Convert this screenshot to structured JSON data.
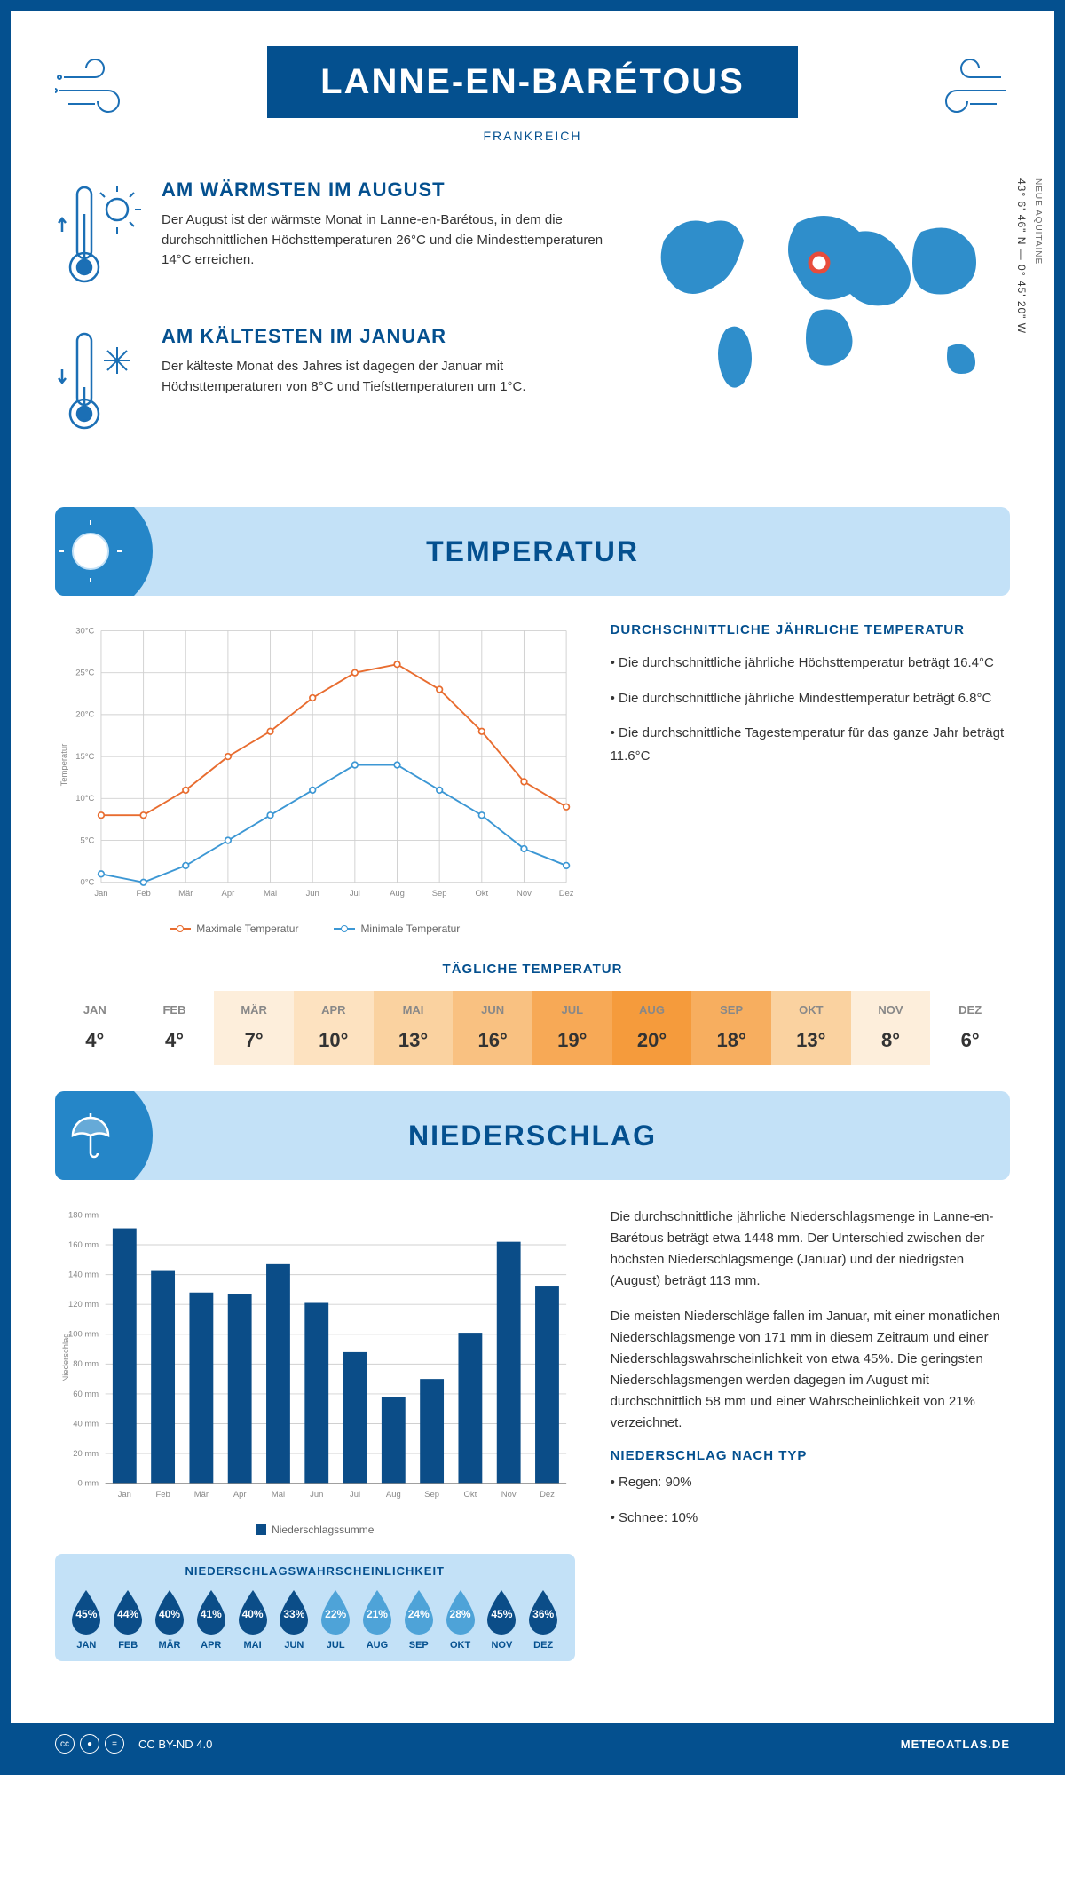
{
  "header": {
    "title": "LANNE-EN-BARÉTOUS",
    "country": "FRANKREICH"
  },
  "coords": {
    "line": "43° 6' 46\" N — 0° 45' 20\" W",
    "region": "NEUE AQUITAINE"
  },
  "warmest": {
    "title": "AM WÄRMSTEN IM AUGUST",
    "body": "Der August ist der wärmste Monat in Lanne-en-Barétous, in dem die durchschnittlichen Höchsttemperaturen 26°C und die Mindesttemperaturen 14°C erreichen."
  },
  "coldest": {
    "title": "AM KÄLTESTEN IM JANUAR",
    "body": "Der kälteste Monat des Jahres ist dagegen der Januar mit Höchsttemperaturen von 8°C und Tiefsttemperaturen um 1°C."
  },
  "sections": {
    "temp": "TEMPERATUR",
    "precip": "NIEDERSCHLAG"
  },
  "months": [
    "Jan",
    "Feb",
    "Mär",
    "Apr",
    "Mai",
    "Jun",
    "Jul",
    "Aug",
    "Sep",
    "Okt",
    "Nov",
    "Dez"
  ],
  "months_upper": [
    "JAN",
    "FEB",
    "MÄR",
    "APR",
    "MAI",
    "JUN",
    "JUL",
    "AUG",
    "SEP",
    "OKT",
    "NOV",
    "DEZ"
  ],
  "temp_chart": {
    "ylabel": "Temperatur",
    "ymin": 0,
    "ymax": 30,
    "ystep": 5,
    "tick_suffix": "°C",
    "max_series": {
      "label": "Maximale Temperatur",
      "color": "#e86c2f",
      "values": [
        8,
        8,
        11,
        15,
        18,
        22,
        25,
        26,
        23,
        18,
        12,
        9
      ]
    },
    "min_series": {
      "label": "Minimale Temperatur",
      "color": "#3c97d4",
      "values": [
        1,
        0,
        2,
        5,
        8,
        11,
        14,
        14,
        11,
        8,
        4,
        2
      ]
    }
  },
  "temp_info": {
    "title": "DURCHSCHNITTLICHE JÄHRLICHE TEMPERATUR",
    "bullets": [
      "• Die durchschnittliche jährliche Höchsttemperatur beträgt 16.4°C",
      "• Die durchschnittliche jährliche Mindesttemperatur beträgt 6.8°C",
      "• Die durchschnittliche Tagestemperatur für das ganze Jahr beträgt 11.6°C"
    ]
  },
  "daily": {
    "title": "TÄGLICHE TEMPERATUR",
    "values": [
      "4°",
      "4°",
      "7°",
      "10°",
      "13°",
      "16°",
      "19°",
      "20°",
      "18°",
      "13°",
      "8°",
      "6°"
    ],
    "colors": [
      "#ffffff",
      "#ffffff",
      "#fdeedb",
      "#fde2c0",
      "#fad2a0",
      "#f9c181",
      "#f7a956",
      "#f59b3c",
      "#f7ae5f",
      "#fad2a0",
      "#fdeedb",
      "#ffffff"
    ]
  },
  "precip_chart": {
    "ylabel": "Niederschlag",
    "ymin": 0,
    "ymax": 180,
    "ystep": 20,
    "tick_suffix": " mm",
    "bar_color": "#0b4d88",
    "legend": "Niederschlagssumme",
    "values": [
      171,
      143,
      128,
      127,
      147,
      121,
      88,
      58,
      70,
      101,
      162,
      132
    ]
  },
  "precip_text": {
    "p1": "Die durchschnittliche jährliche Niederschlagsmenge in Lanne-en-Barétous beträgt etwa 1448 mm. Der Unterschied zwischen der höchsten Niederschlagsmenge (Januar) und der niedrigsten (August) beträgt 113 mm.",
    "p2": "Die meisten Niederschläge fallen im Januar, mit einer monatlichen Niederschlagsmenge von 171 mm in diesem Zeitraum und einer Niederschlagswahrscheinlichkeit von etwa 45%. Die geringsten Niederschlagsmengen werden dagegen im August mit durchschnittlich 58 mm und einer Wahrscheinlichkeit von 21% verzeichnet.",
    "type_title": "NIEDERSCHLAG NACH TYP",
    "type_bullets": [
      "• Regen: 90%",
      "• Schnee: 10%"
    ]
  },
  "probability": {
    "title": "NIEDERSCHLAGSWAHRSCHEINLICHKEIT",
    "values": [
      45,
      44,
      40,
      41,
      40,
      33,
      22,
      21,
      24,
      28,
      45,
      36
    ],
    "dark": "#0b4d88",
    "light": "#4ea3d8",
    "threshold": 30
  },
  "footer": {
    "license": "CC BY-ND 4.0",
    "site": "METEOATLAS.DE"
  }
}
